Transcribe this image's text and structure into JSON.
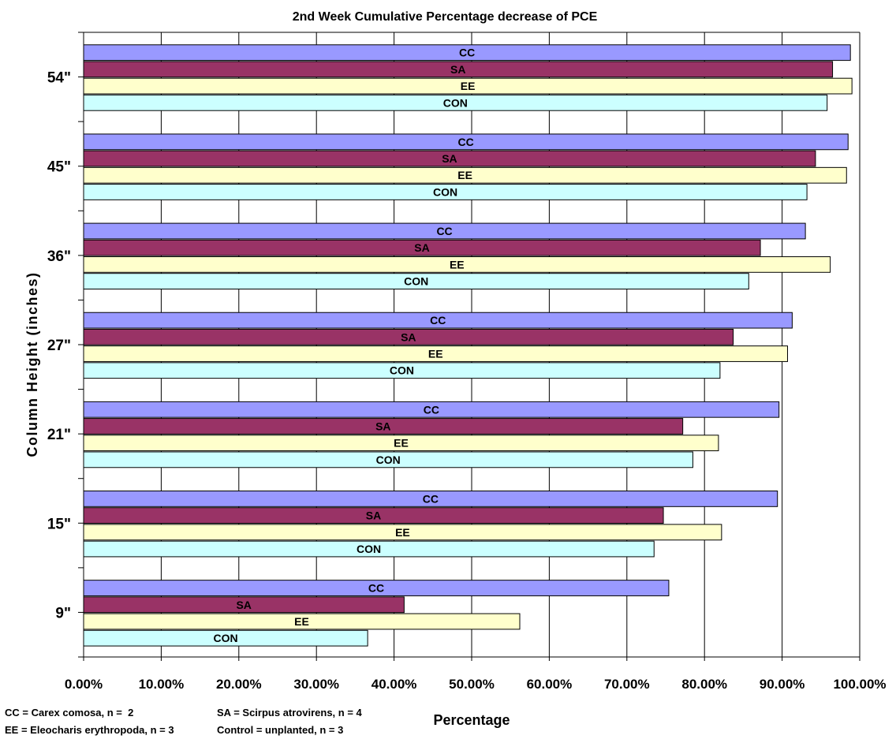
{
  "chart_data": {
    "type": "bar",
    "orientation": "horizontal",
    "title": "2nd Week Cumulative Percentage decrease of PCE",
    "xlabel": "Percentage",
    "ylabel": "Column Height (inches)",
    "xlim": [
      0,
      1
    ],
    "x_ticks": [
      "0.00%",
      "10.00%",
      "20.00%",
      "30.00%",
      "40.00%",
      "50.00%",
      "60.00%",
      "70.00%",
      "80.00%",
      "90.00%",
      "100.00%"
    ],
    "categories": [
      "9\"",
      "15\"",
      "21\"",
      "27\"",
      "36\"",
      "45\"",
      "54\""
    ],
    "grid": "vertical gridlines",
    "series": [
      {
        "name": "CC",
        "color": "#9999ff",
        "values": [
          0.754,
          0.894,
          0.896,
          0.913,
          0.93,
          0.985,
          0.988
        ]
      },
      {
        "name": "SA",
        "color": "#993366",
        "values": [
          0.413,
          0.747,
          0.772,
          0.837,
          0.872,
          0.943,
          0.965
        ]
      },
      {
        "name": "EE",
        "color": "#ffffcc",
        "values": [
          0.562,
          0.822,
          0.818,
          0.907,
          0.962,
          0.983,
          0.99
        ]
      },
      {
        "name": "CON",
        "color": "#ccffff",
        "values": [
          0.366,
          0.735,
          0.785,
          0.82,
          0.857,
          0.932,
          0.958
        ]
      }
    ],
    "legend_notes": [
      "CC = Carex comosa, n =  2",
      "SA = Scirpus atrovirens, n = 4",
      "EE = Eleocharis erythropoda, n = 3",
      "Control = unplanted, n = 3"
    ]
  }
}
